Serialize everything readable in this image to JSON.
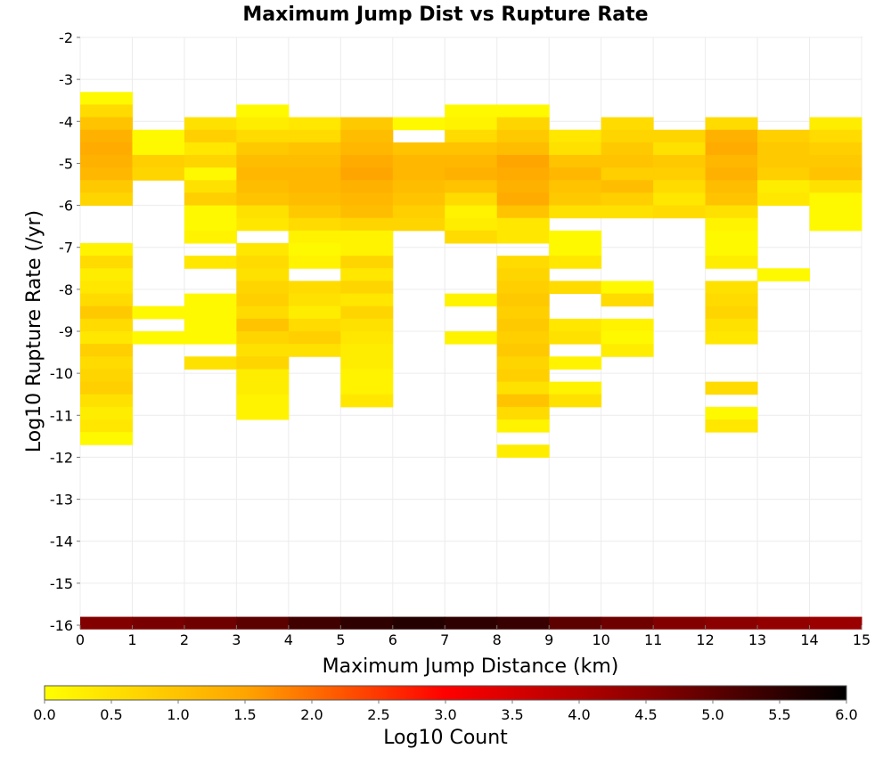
{
  "chart_data": {
    "type": "heatmap",
    "title": "Maximum Jump Dist vs Rupture Rate",
    "xlabel": "Maximum Jump Distance (km)",
    "ylabel": "Log10 Rupture Rate (/yr)",
    "xlim": [
      0,
      15
    ],
    "ylim": [
      -16,
      -2
    ],
    "xticks": [
      "0",
      "1",
      "2",
      "3",
      "4",
      "5",
      "6",
      "7",
      "8",
      "9",
      "10",
      "11",
      "12",
      "13",
      "14",
      "15"
    ],
    "yticks": [
      "-2",
      "-3",
      "-4",
      "-5",
      "-6",
      "-7",
      "-8",
      "-9",
      "-10",
      "-11",
      "-12",
      "-13",
      "-14",
      "-15",
      "-16"
    ],
    "bin_width_x": 1,
    "bin_height_y": 0.3,
    "grid": true,
    "colorbar": {
      "label": "Log10 Count",
      "range": [
        0,
        6
      ],
      "ticks": [
        "0.0",
        "0.5",
        "1.0",
        "1.5",
        "2.0",
        "2.5",
        "3.0",
        "3.5",
        "4.0",
        "4.5",
        "5.0",
        "5.5",
        "6.0"
      ],
      "colors": [
        "#ffff00",
        "#ffa500",
        "#ff0000",
        "#8b0000",
        "#000000"
      ]
    },
    "columns": [
      {
        "x": 0,
        "cells": [
          [
            -3.45,
            0.1
          ],
          [
            -3.75,
            0.6
          ],
          [
            -4.05,
            1.0
          ],
          [
            -4.35,
            1.3
          ],
          [
            -4.65,
            1.4
          ],
          [
            -4.95,
            1.3
          ],
          [
            -5.25,
            1.2
          ],
          [
            -5.55,
            0.9
          ],
          [
            -5.85,
            0.7
          ],
          [
            -7.05,
            0.2
          ],
          [
            -7.35,
            0.6
          ],
          [
            -7.65,
            0.3
          ],
          [
            -7.95,
            0.4
          ],
          [
            -8.25,
            0.6
          ],
          [
            -8.55,
            0.9
          ],
          [
            -8.85,
            0.6
          ],
          [
            -9.15,
            0.4
          ],
          [
            -9.45,
            0.8
          ],
          [
            -9.75,
            0.6
          ],
          [
            -10.05,
            0.7
          ],
          [
            -10.35,
            0.8
          ],
          [
            -10.65,
            0.5
          ],
          [
            -10.95,
            0.3
          ],
          [
            -11.25,
            0.4
          ],
          [
            -11.55,
            0.1
          ]
        ]
      },
      {
        "x": 1,
        "cells": [
          [
            -4.35,
            0.1
          ],
          [
            -4.65,
            0.1
          ],
          [
            -4.95,
            0.8
          ],
          [
            -5.25,
            0.7
          ],
          [
            -8.55,
            0.1
          ],
          [
            -9.15,
            0.1
          ]
        ]
      },
      {
        "x": 2,
        "cells": [
          [
            -4.05,
            0.5
          ],
          [
            -4.35,
            0.8
          ],
          [
            -4.65,
            0.4
          ],
          [
            -4.95,
            0.7
          ],
          [
            -5.25,
            0.1
          ],
          [
            -5.55,
            0.5
          ],
          [
            -5.85,
            0.8
          ],
          [
            -6.15,
            0.1
          ],
          [
            -6.45,
            0.1
          ],
          [
            -6.75,
            0.2
          ],
          [
            -7.35,
            0.4
          ],
          [
            -8.25,
            0.1
          ],
          [
            -8.55,
            0.1
          ],
          [
            -8.85,
            0.1
          ],
          [
            -9.15,
            0.1
          ],
          [
            -9.75,
            0.5
          ]
        ]
      },
      {
        "x": 3,
        "cells": [
          [
            -3.75,
            0.1
          ],
          [
            -4.05,
            0.3
          ],
          [
            -4.35,
            0.6
          ],
          [
            -4.65,
            0.9
          ],
          [
            -4.95,
            1.1
          ],
          [
            -5.25,
            1.2
          ],
          [
            -5.55,
            1.1
          ],
          [
            -5.85,
            1.0
          ],
          [
            -6.15,
            0.5
          ],
          [
            -6.45,
            0.4
          ],
          [
            -7.05,
            0.4
          ],
          [
            -7.35,
            0.6
          ],
          [
            -7.65,
            0.5
          ],
          [
            -7.95,
            0.7
          ],
          [
            -8.25,
            0.8
          ],
          [
            -8.55,
            0.6
          ],
          [
            -8.85,
            1.0
          ],
          [
            -9.15,
            0.7
          ],
          [
            -9.45,
            0.5
          ],
          [
            -9.75,
            0.7
          ],
          [
            -10.05,
            0.3
          ],
          [
            -10.35,
            0.3
          ],
          [
            -10.65,
            0.2
          ],
          [
            -10.95,
            0.2
          ]
        ]
      },
      {
        "x": 4,
        "cells": [
          [
            -4.05,
            0.4
          ],
          [
            -4.35,
            0.6
          ],
          [
            -4.65,
            1.0
          ],
          [
            -4.95,
            1.1
          ],
          [
            -5.25,
            1.2
          ],
          [
            -5.55,
            1.2
          ],
          [
            -5.85,
            1.1
          ],
          [
            -6.15,
            0.9
          ],
          [
            -6.45,
            0.6
          ],
          [
            -6.75,
            0.2
          ],
          [
            -7.05,
            0.1
          ],
          [
            -7.35,
            0.2
          ],
          [
            -7.95,
            0.6
          ],
          [
            -8.25,
            0.5
          ],
          [
            -8.55,
            0.3
          ],
          [
            -8.85,
            0.6
          ],
          [
            -9.15,
            0.8
          ],
          [
            -9.45,
            0.5
          ]
        ]
      },
      {
        "x": 5,
        "cells": [
          [
            -4.05,
            0.9
          ],
          [
            -4.35,
            1.1
          ],
          [
            -4.65,
            1.2
          ],
          [
            -4.95,
            1.4
          ],
          [
            -5.25,
            1.5
          ],
          [
            -5.55,
            1.3
          ],
          [
            -5.85,
            1.2
          ],
          [
            -6.15,
            1.1
          ],
          [
            -6.45,
            0.7
          ],
          [
            -6.75,
            0.2
          ],
          [
            -7.05,
            0.2
          ],
          [
            -7.35,
            0.7
          ],
          [
            -7.65,
            0.4
          ],
          [
            -7.95,
            0.7
          ],
          [
            -8.25,
            0.4
          ],
          [
            -8.55,
            0.7
          ],
          [
            -8.85,
            0.5
          ],
          [
            -9.15,
            0.4
          ],
          [
            -9.45,
            0.3
          ],
          [
            -9.75,
            0.3
          ],
          [
            -10.05,
            0.2
          ],
          [
            -10.35,
            0.2
          ],
          [
            -10.65,
            0.4
          ]
        ]
      },
      {
        "x": 6,
        "cells": [
          [
            -4.05,
            0.1
          ],
          [
            -4.65,
            1.0
          ],
          [
            -4.95,
            1.2
          ],
          [
            -5.25,
            1.2
          ],
          [
            -5.55,
            1.1
          ],
          [
            -5.85,
            1.0
          ],
          [
            -6.15,
            0.8
          ],
          [
            -6.45,
            0.7
          ]
        ]
      },
      {
        "x": 7,
        "cells": [
          [
            -3.75,
            0.1
          ],
          [
            -4.05,
            0.2
          ],
          [
            -4.35,
            0.6
          ],
          [
            -4.65,
            1.0
          ],
          [
            -4.95,
            1.2
          ],
          [
            -5.25,
            1.3
          ],
          [
            -5.55,
            1.0
          ],
          [
            -5.85,
            0.6
          ],
          [
            -6.15,
            0.2
          ],
          [
            -6.45,
            0.3
          ],
          [
            -6.75,
            0.6
          ],
          [
            -8.25,
            0.2
          ],
          [
            -9.15,
            0.2
          ]
        ]
      },
      {
        "x": 8,
        "cells": [
          [
            -3.75,
            0.1
          ],
          [
            -4.05,
            0.7
          ],
          [
            -4.35,
            0.9
          ],
          [
            -4.65,
            1.1
          ],
          [
            -4.95,
            1.5
          ],
          [
            -5.25,
            1.4
          ],
          [
            -5.55,
            1.3
          ],
          [
            -5.85,
            1.4
          ],
          [
            -6.15,
            1.0
          ],
          [
            -6.45,
            0.4
          ],
          [
            -6.75,
            0.4
          ],
          [
            -7.35,
            0.6
          ],
          [
            -7.65,
            0.7
          ],
          [
            -7.95,
            0.8
          ],
          [
            -8.25,
            0.9
          ],
          [
            -8.55,
            0.8
          ],
          [
            -8.85,
            0.9
          ],
          [
            -9.15,
            0.8
          ],
          [
            -9.45,
            0.9
          ],
          [
            -9.75,
            0.7
          ],
          [
            -10.05,
            0.8
          ],
          [
            -10.35,
            0.5
          ],
          [
            -10.65,
            1.0
          ],
          [
            -10.95,
            0.6
          ],
          [
            -11.25,
            0.2
          ],
          [
            -11.85,
            0.3
          ]
        ]
      },
      {
        "x": 9,
        "cells": [
          [
            -4.35,
            0.4
          ],
          [
            -4.65,
            0.5
          ],
          [
            -4.95,
            1.0
          ],
          [
            -5.25,
            1.2
          ],
          [
            -5.55,
            1.0
          ],
          [
            -5.85,
            0.9
          ],
          [
            -6.15,
            0.5
          ],
          [
            -6.75,
            0.1
          ],
          [
            -7.05,
            0.1
          ],
          [
            -7.35,
            0.4
          ],
          [
            -7.95,
            0.6
          ],
          [
            -8.85,
            0.4
          ],
          [
            -9.15,
            0.5
          ],
          [
            -9.75,
            0.2
          ],
          [
            -10.35,
            0.2
          ],
          [
            -10.65,
            0.5
          ]
        ]
      },
      {
        "x": 10,
        "cells": [
          [
            -4.05,
            0.6
          ],
          [
            -4.35,
            0.7
          ],
          [
            -4.65,
            0.9
          ],
          [
            -4.95,
            1.0
          ],
          [
            -5.25,
            0.8
          ],
          [
            -5.55,
            1.1
          ],
          [
            -5.85,
            0.8
          ],
          [
            -6.15,
            0.5
          ],
          [
            -7.95,
            0.1
          ],
          [
            -8.25,
            0.6
          ],
          [
            -8.85,
            0.2
          ],
          [
            -9.15,
            0.1
          ],
          [
            -9.45,
            0.3
          ]
        ]
      },
      {
        "x": 11,
        "cells": [
          [
            -4.35,
            0.7
          ],
          [
            -4.65,
            0.5
          ],
          [
            -4.95,
            0.9
          ],
          [
            -5.25,
            0.8
          ],
          [
            -5.55,
            0.6
          ],
          [
            -5.85,
            0.4
          ],
          [
            -6.15,
            0.6
          ]
        ]
      },
      {
        "x": 12,
        "cells": [
          [
            -4.05,
            0.6
          ],
          [
            -4.35,
            1.3
          ],
          [
            -4.65,
            1.4
          ],
          [
            -4.95,
            1.2
          ],
          [
            -5.25,
            1.3
          ],
          [
            -5.55,
            1.1
          ],
          [
            -5.85,
            1.0
          ],
          [
            -6.15,
            0.5
          ],
          [
            -6.45,
            0.2
          ],
          [
            -6.75,
            0.1
          ],
          [
            -7.05,
            0.1
          ],
          [
            -7.35,
            0.3
          ],
          [
            -7.95,
            0.5
          ],
          [
            -8.25,
            0.6
          ],
          [
            -8.55,
            0.7
          ],
          [
            -8.85,
            0.5
          ],
          [
            -9.15,
            0.4
          ],
          [
            -10.35,
            0.6
          ],
          [
            -10.95,
            0.1
          ],
          [
            -11.25,
            0.4
          ]
        ]
      },
      {
        "x": 13,
        "cells": [
          [
            -4.35,
            0.8
          ],
          [
            -4.65,
            0.9
          ],
          [
            -4.95,
            0.9
          ],
          [
            -5.25,
            0.8
          ],
          [
            -5.55,
            0.3
          ],
          [
            -5.85,
            0.4
          ],
          [
            -7.65,
            0.1
          ]
        ]
      },
      {
        "x": 14,
        "cells": [
          [
            -4.05,
            0.3
          ],
          [
            -4.35,
            0.6
          ],
          [
            -4.65,
            0.8
          ],
          [
            -4.95,
            0.9
          ],
          [
            -5.25,
            1.0
          ],
          [
            -5.55,
            0.5
          ],
          [
            -5.85,
            0.1
          ],
          [
            -6.15,
            0.1
          ],
          [
            -6.45,
            0.1
          ]
        ]
      }
    ],
    "bottom_row": {
      "y": -15.95,
      "values": [
        4.6,
        4.7,
        4.8,
        5.0,
        5.3,
        5.5,
        5.6,
        5.5,
        5.4,
        5.0,
        4.8,
        4.6,
        4.5,
        4.4,
        4.3
      ]
    }
  }
}
